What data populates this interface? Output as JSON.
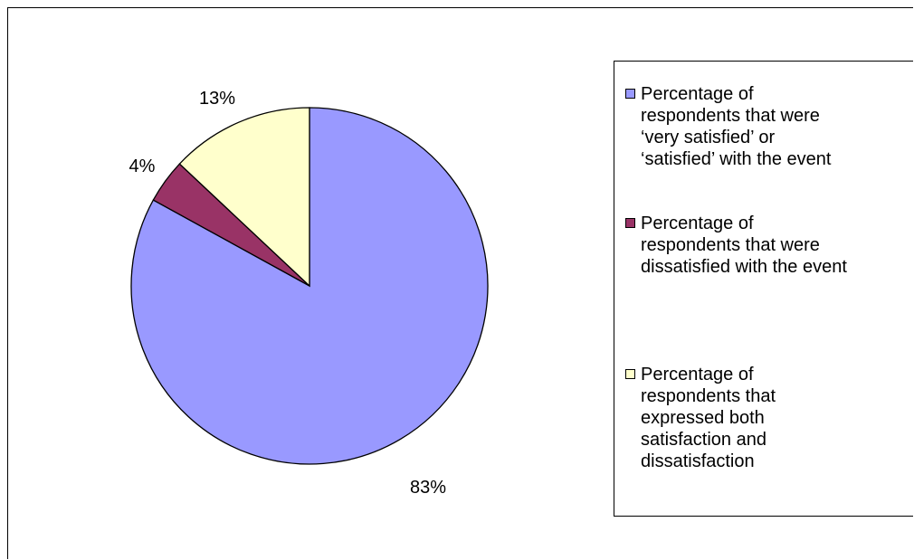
{
  "chart_data": {
    "type": "pie",
    "title": "",
    "slices": [
      {
        "label": "Percentage of\nrespondents that were\n‘very satisfied’ or\n‘satisfied’ with the event",
        "value": 83,
        "data_label": "83%",
        "color": "#9999ff"
      },
      {
        "label": "Percentage of\nrespondents that were\ndissatisfied with the event",
        "value": 4,
        "data_label": "4%",
        "color": "#993366"
      },
      {
        "label": "Percentage of\nrespondents that\nexpressed both\nsatisfaction and\ndissatisfaction",
        "value": 13,
        "data_label": "13%",
        "color": "#ffffcc"
      }
    ],
    "legend_position": "right",
    "start_angle": "top",
    "direction": "clockwise"
  }
}
